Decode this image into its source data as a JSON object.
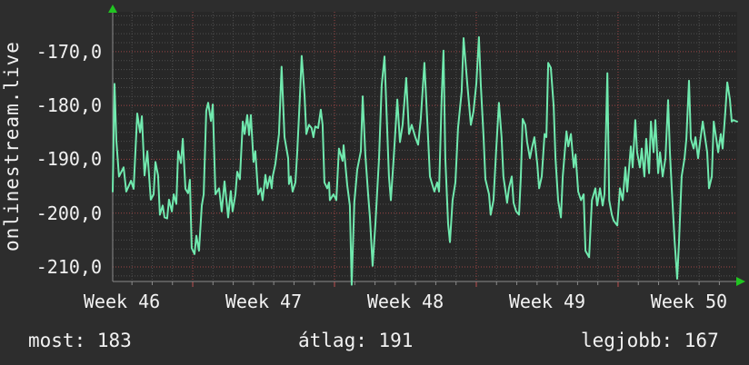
{
  "colors": {
    "background": "#2d2d2d",
    "plot_background": "#272727",
    "line": "#70e9ae",
    "axis": "#8a8a8a",
    "minor_grid": "#4f4f4f",
    "major_grid": "#9c4545",
    "major_tick": "#c05050",
    "arrow": "#21c521",
    "text": "#f2f2f2"
  },
  "chart_data": {
    "type": "line",
    "title": "",
    "ylabel": "onlinestream.live",
    "legend_position": "none",
    "grid": {
      "enabled": true,
      "y_major_step": 10,
      "y_minor_per_major": 6,
      "x_minor_unit_days": 1,
      "x_major_unit_days": 7
    },
    "ylim": {
      "min": -212.7,
      "max": -162.6
    },
    "x_axis": {
      "unit": "days",
      "range": [
        0,
        30.83
      ],
      "first_minor_day": 0.95,
      "week_start_days": [
        3.95,
        10.95,
        17.95,
        24.95
      ],
      "labels": [
        {
          "day": 0.45,
          "label": "Week 46"
        },
        {
          "day": 7.45,
          "label": "Week 47"
        },
        {
          "day": 14.45,
          "label": "Week 48"
        },
        {
          "day": 21.45,
          "label": "Week 49"
        },
        {
          "day": 28.45,
          "label": "Week 50"
        }
      ]
    },
    "y_ticks": [
      {
        "v": -170,
        "label": "-170,0"
      },
      {
        "v": -180,
        "label": "-180,0"
      },
      {
        "v": -190,
        "label": "-190,0"
      },
      {
        "v": -200,
        "label": "-200,0"
      },
      {
        "v": -210,
        "label": "-210,0"
      }
    ],
    "footer": {
      "most": "most: 183",
      "atlag": "átlag: 191",
      "legjobb": "legjobb: 167",
      "most_value": 183,
      "atlag_value": 191,
      "legjobb_value": 167
    },
    "series": [
      {
        "name": "onlinestream.live",
        "color": "#70e9ae",
        "points": [
          [
            0.0,
            -196.0
          ],
          [
            0.09,
            -176.0
          ],
          [
            0.18,
            -186.5
          ],
          [
            0.31,
            -193.2
          ],
          [
            0.54,
            -191.5
          ],
          [
            0.67,
            -196.0
          ],
          [
            0.9,
            -194.0
          ],
          [
            1.03,
            -195.5
          ],
          [
            1.21,
            -181.5
          ],
          [
            1.35,
            -185.0
          ],
          [
            1.44,
            -182.0
          ],
          [
            1.57,
            -193.0
          ],
          [
            1.71,
            -188.5
          ],
          [
            1.88,
            -197.5
          ],
          [
            2.02,
            -196.5
          ],
          [
            2.11,
            -190.5
          ],
          [
            2.24,
            -193.0
          ],
          [
            2.33,
            -200.3
          ],
          [
            2.47,
            -198.6
          ],
          [
            2.56,
            -200.8
          ],
          [
            2.69,
            -201.0
          ],
          [
            2.78,
            -197.5
          ],
          [
            2.92,
            -199.7
          ],
          [
            3.01,
            -196.5
          ],
          [
            3.14,
            -198.3
          ],
          [
            3.23,
            -188.5
          ],
          [
            3.37,
            -190.7
          ],
          [
            3.46,
            -186.2
          ],
          [
            3.59,
            -195.5
          ],
          [
            3.72,
            -196.3
          ],
          [
            3.81,
            -193.8
          ],
          [
            3.9,
            -206.5
          ],
          [
            4.04,
            -207.6
          ],
          [
            4.13,
            -204.2
          ],
          [
            4.26,
            -207.0
          ],
          [
            4.4,
            -198.6
          ],
          [
            4.49,
            -196.5
          ],
          [
            4.62,
            -181.0
          ],
          [
            4.71,
            -179.5
          ],
          [
            4.85,
            -182.9
          ],
          [
            4.94,
            -179.8
          ],
          [
            5.07,
            -196.5
          ],
          [
            5.25,
            -195.4
          ],
          [
            5.38,
            -199.7
          ],
          [
            5.52,
            -194.1
          ],
          [
            5.7,
            -200.8
          ],
          [
            5.83,
            -195.9
          ],
          [
            5.92,
            -199.7
          ],
          [
            6.06,
            -196.5
          ],
          [
            6.15,
            -192.3
          ],
          [
            6.28,
            -193.7
          ],
          [
            6.42,
            -183.0
          ],
          [
            6.51,
            -185.3
          ],
          [
            6.64,
            -181.8
          ],
          [
            6.73,
            -185.5
          ],
          [
            6.82,
            -181.8
          ],
          [
            6.95,
            -190.5
          ],
          [
            7.04,
            -188.5
          ],
          [
            7.18,
            -196.5
          ],
          [
            7.31,
            -195.4
          ],
          [
            7.4,
            -197.6
          ],
          [
            7.54,
            -192.9
          ],
          [
            7.63,
            -195.4
          ],
          [
            7.76,
            -193.2
          ],
          [
            7.85,
            -195.4
          ],
          [
            7.9,
            -193.2
          ],
          [
            8.03,
            -190.9
          ],
          [
            8.21,
            -185.3
          ],
          [
            8.34,
            -172.8
          ],
          [
            8.48,
            -185.9
          ],
          [
            8.66,
            -189.8
          ],
          [
            8.7,
            -194.6
          ],
          [
            8.79,
            -193.2
          ],
          [
            8.88,
            -196.0
          ],
          [
            9.02,
            -194.3
          ],
          [
            9.11,
            -188.7
          ],
          [
            9.24,
            -178.5
          ],
          [
            9.33,
            -170.8
          ],
          [
            9.47,
            -178.0
          ],
          [
            9.56,
            -185.3
          ],
          [
            9.69,
            -183.6
          ],
          [
            9.82,
            -184.2
          ],
          [
            9.91,
            -185.9
          ],
          [
            10.0,
            -183.9
          ],
          [
            10.14,
            -184.2
          ],
          [
            10.27,
            -180.8
          ],
          [
            10.36,
            -183.6
          ],
          [
            10.45,
            -194.3
          ],
          [
            10.59,
            -195.4
          ],
          [
            10.68,
            -194.3
          ],
          [
            10.72,
            -197.6
          ],
          [
            10.9,
            -196.5
          ],
          [
            11.04,
            -197.6
          ],
          [
            11.17,
            -188.0
          ],
          [
            11.35,
            -190.3
          ],
          [
            11.4,
            -187.4
          ],
          [
            11.58,
            -194.8
          ],
          [
            11.71,
            -198.6
          ],
          [
            11.8,
            -213.3
          ],
          [
            11.93,
            -198.0
          ],
          [
            12.07,
            -191.9
          ],
          [
            12.25,
            -188.5
          ],
          [
            12.34,
            -178.3
          ],
          [
            12.47,
            -189.1
          ],
          [
            12.61,
            -196.5
          ],
          [
            12.7,
            -200.8
          ],
          [
            12.83,
            -209.8
          ],
          [
            12.97,
            -202.0
          ],
          [
            13.15,
            -189.8
          ],
          [
            13.28,
            -176.3
          ],
          [
            13.42,
            -170.9
          ],
          [
            13.51,
            -180.1
          ],
          [
            13.64,
            -193.2
          ],
          [
            13.73,
            -197.6
          ],
          [
            13.87,
            -189.8
          ],
          [
            14.05,
            -178.9
          ],
          [
            14.18,
            -186.8
          ],
          [
            14.31,
            -183.6
          ],
          [
            14.49,
            -174.9
          ],
          [
            14.63,
            -185.3
          ],
          [
            14.76,
            -183.6
          ],
          [
            14.94,
            -185.9
          ],
          [
            15.08,
            -187.3
          ],
          [
            15.21,
            -182.5
          ],
          [
            15.39,
            -172.1
          ],
          [
            15.53,
            -183.0
          ],
          [
            15.66,
            -193.2
          ],
          [
            15.79,
            -194.9
          ],
          [
            15.88,
            -196.0
          ],
          [
            16.02,
            -194.3
          ],
          [
            16.11,
            -196.0
          ],
          [
            16.24,
            -178.5
          ],
          [
            16.33,
            -169.8
          ],
          [
            16.42,
            -189.8
          ],
          [
            16.56,
            -202.0
          ],
          [
            16.65,
            -205.4
          ],
          [
            16.78,
            -197.6
          ],
          [
            16.92,
            -194.3
          ],
          [
            17.05,
            -184.2
          ],
          [
            17.23,
            -177.4
          ],
          [
            17.32,
            -167.5
          ],
          [
            17.5,
            -175.8
          ],
          [
            17.68,
            -183.6
          ],
          [
            17.81,
            -181.1
          ],
          [
            17.95,
            -176.0
          ],
          [
            18.08,
            -167.3
          ],
          [
            18.17,
            -176.0
          ],
          [
            18.31,
            -185.9
          ],
          [
            18.4,
            -193.7
          ],
          [
            18.58,
            -196.5
          ],
          [
            18.66,
            -200.3
          ],
          [
            18.8,
            -197.6
          ],
          [
            18.93,
            -188.5
          ],
          [
            19.07,
            -179.5
          ],
          [
            19.2,
            -185.9
          ],
          [
            19.29,
            -193.2
          ],
          [
            19.47,
            -198.1
          ],
          [
            19.56,
            -195.4
          ],
          [
            19.7,
            -193.2
          ],
          [
            19.79,
            -198.1
          ],
          [
            19.92,
            -199.7
          ],
          [
            20.06,
            -200.3
          ],
          [
            20.15,
            -193.2
          ],
          [
            20.24,
            -182.5
          ],
          [
            20.37,
            -183.6
          ],
          [
            20.46,
            -186.8
          ],
          [
            20.6,
            -189.8
          ],
          [
            20.69,
            -188.0
          ],
          [
            20.82,
            -185.9
          ],
          [
            20.96,
            -190.9
          ],
          [
            21.05,
            -195.4
          ],
          [
            21.18,
            -193.2
          ],
          [
            21.32,
            -185.3
          ],
          [
            21.41,
            -185.9
          ],
          [
            21.5,
            -172.1
          ],
          [
            21.63,
            -173.0
          ],
          [
            21.77,
            -180.1
          ],
          [
            21.86,
            -189.8
          ],
          [
            21.99,
            -197.6
          ],
          [
            22.13,
            -200.8
          ],
          [
            22.22,
            -193.2
          ],
          [
            22.4,
            -184.8
          ],
          [
            22.49,
            -187.6
          ],
          [
            22.62,
            -185.3
          ],
          [
            22.76,
            -191.5
          ],
          [
            22.85,
            -189.1
          ],
          [
            22.98,
            -196.0
          ],
          [
            23.12,
            -197.6
          ],
          [
            23.25,
            -196.5
          ],
          [
            23.34,
            -207.0
          ],
          [
            23.52,
            -208.2
          ],
          [
            23.66,
            -197.6
          ],
          [
            23.83,
            -195.4
          ],
          [
            23.92,
            -198.6
          ],
          [
            24.06,
            -195.4
          ],
          [
            24.19,
            -198.6
          ],
          [
            24.28,
            -196.5
          ],
          [
            24.42,
            -174.0
          ],
          [
            24.51,
            -197.6
          ],
          [
            24.64,
            -200.3
          ],
          [
            24.73,
            -201.4
          ],
          [
            24.91,
            -202.3
          ],
          [
            25.04,
            -195.4
          ],
          [
            25.18,
            -197.6
          ],
          [
            25.31,
            -191.5
          ],
          [
            25.4,
            -196.0
          ],
          [
            25.58,
            -187.6
          ],
          [
            25.67,
            -191.5
          ],
          [
            25.8,
            -182.7
          ],
          [
            25.89,
            -188.7
          ],
          [
            26.03,
            -191.5
          ],
          [
            26.12,
            -188.0
          ],
          [
            26.25,
            -193.2
          ],
          [
            26.34,
            -186.2
          ],
          [
            26.48,
            -192.6
          ],
          [
            26.57,
            -183.0
          ],
          [
            26.7,
            -188.7
          ],
          [
            26.79,
            -182.7
          ],
          [
            26.93,
            -192.6
          ],
          [
            27.02,
            -188.7
          ],
          [
            27.15,
            -193.2
          ],
          [
            27.29,
            -189.8
          ],
          [
            27.42,
            -179.0
          ],
          [
            27.51,
            -188.7
          ],
          [
            27.6,
            -195.4
          ],
          [
            27.74,
            -205.0
          ],
          [
            27.87,
            -212.2
          ],
          [
            27.96,
            -205.4
          ],
          [
            28.09,
            -193.2
          ],
          [
            28.23,
            -189.8
          ],
          [
            28.32,
            -186.2
          ],
          [
            28.45,
            -175.4
          ],
          [
            28.54,
            -186.2
          ],
          [
            28.68,
            -188.0
          ],
          [
            28.77,
            -185.9
          ],
          [
            28.9,
            -189.8
          ],
          [
            28.99,
            -187.0
          ],
          [
            29.13,
            -183.0
          ],
          [
            29.22,
            -185.3
          ],
          [
            29.35,
            -188.7
          ],
          [
            29.44,
            -195.4
          ],
          [
            29.58,
            -193.2
          ],
          [
            29.67,
            -183.0
          ],
          [
            29.8,
            -186.2
          ],
          [
            29.89,
            -188.7
          ],
          [
            30.02,
            -185.3
          ],
          [
            30.11,
            -188.0
          ],
          [
            30.25,
            -180.8
          ],
          [
            30.34,
            -175.7
          ],
          [
            30.47,
            -178.9
          ],
          [
            30.56,
            -183.0
          ],
          [
            30.65,
            -182.7
          ],
          [
            30.74,
            -182.9
          ],
          [
            30.83,
            -183.0
          ]
        ]
      }
    ]
  }
}
